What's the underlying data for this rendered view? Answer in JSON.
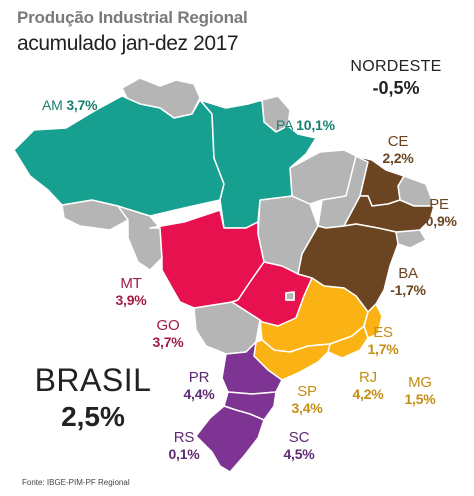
{
  "title": "Produção Industrial Regional",
  "subtitle": "acumulado jan-dez 2017",
  "colors": {
    "AM": "#17a08f",
    "PA": "#17a08f",
    "MT": "#e8114f",
    "GO": "#e8114f",
    "NE": "#6b4421",
    "SE": "#fbb215",
    "S": "#7d3493",
    "other": "#b5b5b5",
    "border": "#ffffff"
  },
  "regions": {
    "nordeste": {
      "label": "NORDESTE",
      "value": "-0,5%"
    },
    "am": {
      "code": "AM",
      "value": "3,7%",
      "color": "#17806f"
    },
    "pa": {
      "code": "PA",
      "value": "10,1%",
      "color": "#17806f"
    },
    "ce": {
      "code": "CE",
      "value": "2,2%",
      "color": "#6b4421"
    },
    "pe": {
      "code": "PE",
      "value": "-0,9%",
      "color": "#6b4421"
    },
    "ba": {
      "code": "BA",
      "value": "-1,7%",
      "color": "#6b4421"
    },
    "mt": {
      "code": "MT",
      "value": "3,9%",
      "color": "#a01c42"
    },
    "go": {
      "code": "GO",
      "value": "3,7%",
      "color": "#a01c42"
    },
    "es": {
      "code": "ES",
      "value": "1,7%",
      "color": "#c58d12"
    },
    "rj": {
      "code": "RJ",
      "value": "4,2%",
      "color": "#c58d12"
    },
    "mg": {
      "code": "MG",
      "value": "1,5%",
      "color": "#c58d12"
    },
    "sp": {
      "code": "SP",
      "value": "3,4%",
      "color": "#c58d12"
    },
    "pr": {
      "code": "PR",
      "value": "4,4%",
      "color": "#5e2a73"
    },
    "rs": {
      "code": "RS",
      "value": "0,1%",
      "color": "#5e2a73"
    },
    "sc": {
      "code": "SC",
      "value": "4,5%",
      "color": "#5e2a73"
    }
  },
  "brasil": {
    "label": "BRASIL",
    "value": "2,5%"
  },
  "source": "Fonte: IBGE-PIM-PF Regional"
}
